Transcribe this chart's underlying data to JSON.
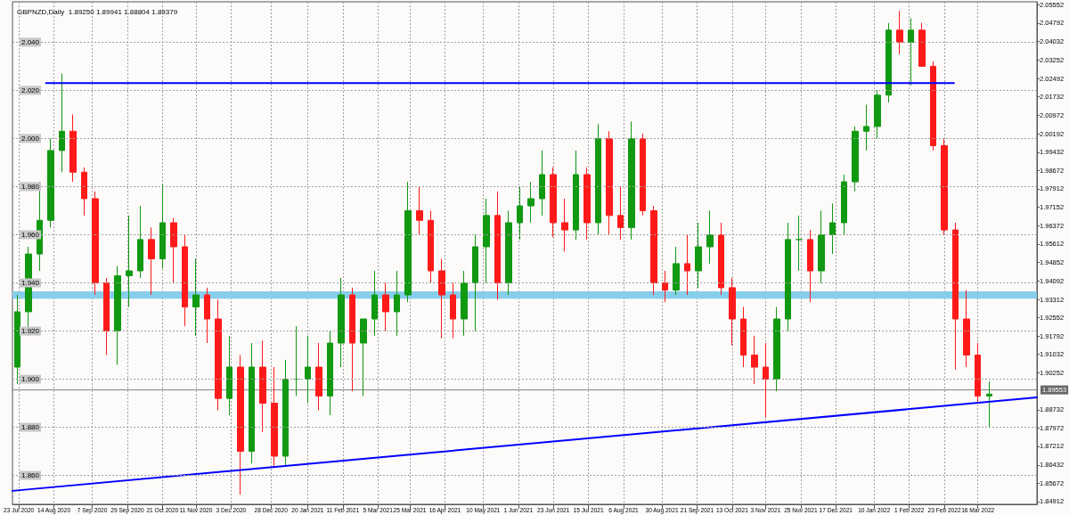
{
  "chart_data": {
    "type": "candlestick",
    "title": "GBPNZD,Daily  1.89250 1.89941 1.88804 1.89379",
    "x": [
      "2020-07-22",
      "2020-07-29",
      "2020-08-05",
      "2020-08-12",
      "2020-08-19",
      "2020-08-26",
      "2020-09-02",
      "2020-09-09",
      "2020-09-16",
      "2020-09-23",
      "2020-09-30",
      "2020-10-07",
      "2020-10-14",
      "2020-10-21",
      "2020-10-28",
      "2020-11-04",
      "2020-11-11",
      "2020-11-18",
      "2020-11-25",
      "2020-12-02",
      "2020-12-09",
      "2020-12-16",
      "2020-12-23",
      "2020-12-30",
      "2021-01-06",
      "2021-01-13",
      "2021-01-20",
      "2021-01-27",
      "2021-02-03",
      "2021-02-10",
      "2021-02-17",
      "2021-02-24",
      "2021-03-03",
      "2021-03-10",
      "2021-03-17",
      "2021-03-24",
      "2021-03-31",
      "2021-04-07",
      "2021-04-14",
      "2021-04-21",
      "2021-04-28",
      "2021-05-05",
      "2021-05-12",
      "2021-05-19",
      "2021-05-26",
      "2021-06-02",
      "2021-06-09",
      "2021-06-16",
      "2021-06-23",
      "2021-06-30",
      "2021-07-07",
      "2021-07-14",
      "2021-07-21",
      "2021-07-28",
      "2021-08-04",
      "2021-08-11",
      "2021-08-18",
      "2021-08-25",
      "2021-09-01",
      "2021-09-08",
      "2021-09-15",
      "2021-09-22",
      "2021-09-29",
      "2021-10-06",
      "2021-10-13",
      "2021-10-20",
      "2021-10-27",
      "2021-11-03",
      "2021-11-10",
      "2021-11-17",
      "2021-11-24",
      "2021-12-01",
      "2021-12-08",
      "2021-12-15",
      "2021-12-22",
      "2021-12-29",
      "2022-01-05",
      "2022-01-12",
      "2022-01-19",
      "2022-01-26",
      "2022-02-02",
      "2022-02-09",
      "2022-02-16",
      "2022-02-23",
      "2022-03-02",
      "2022-03-09",
      "2022-03-16",
      "2022-03-23"
    ],
    "ohlc": [
      [
        1.905,
        1.935,
        1.898,
        1.928
      ],
      [
        1.928,
        1.955,
        1.918,
        1.952
      ],
      [
        1.952,
        1.982,
        1.945,
        1.966
      ],
      [
        1.966,
        2.0,
        1.963,
        1.995
      ],
      [
        1.995,
        2.027,
        1.986,
        2.003
      ],
      [
        2.003,
        2.01,
        1.982,
        1.986
      ],
      [
        1.986,
        1.988,
        1.968,
        1.975
      ],
      [
        1.975,
        1.978,
        1.935,
        1.94
      ],
      [
        1.94,
        1.942,
        1.91,
        1.92
      ],
      [
        1.92,
        1.947,
        1.906,
        1.943
      ],
      [
        1.943,
        1.968,
        1.93,
        1.945
      ],
      [
        1.945,
        1.972,
        1.942,
        1.958
      ],
      [
        1.958,
        1.963,
        1.935,
        1.95
      ],
      [
        1.95,
        1.981,
        1.946,
        1.965
      ],
      [
        1.965,
        1.967,
        1.94,
        1.955
      ],
      [
        1.955,
        1.96,
        1.922,
        1.93
      ],
      [
        1.93,
        1.95,
        1.918,
        1.935
      ],
      [
        1.935,
        1.938,
        1.915,
        1.925
      ],
      [
        1.925,
        1.933,
        1.887,
        1.892
      ],
      [
        1.892,
        1.918,
        1.885,
        1.905
      ],
      [
        1.905,
        1.91,
        1.852,
        1.87
      ],
      [
        1.87,
        1.915,
        1.865,
        1.905
      ],
      [
        1.905,
        1.916,
        1.878,
        1.89
      ],
      [
        1.89,
        1.905,
        1.863,
        1.868
      ],
      [
        1.868,
        1.908,
        1.864,
        1.9
      ],
      [
        1.9,
        1.922,
        1.893,
        1.9
      ],
      [
        1.9,
        1.918,
        1.89,
        1.905
      ],
      [
        1.905,
        1.915,
        1.887,
        1.893
      ],
      [
        1.893,
        1.92,
        1.885,
        1.915
      ],
      [
        1.915,
        1.942,
        1.905,
        1.935
      ],
      [
        1.935,
        1.938,
        1.895,
        1.915
      ],
      [
        1.915,
        1.925,
        1.893,
        1.925
      ],
      [
        1.925,
        1.945,
        1.918,
        1.935
      ],
      [
        1.935,
        1.94,
        1.92,
        1.928
      ],
      [
        1.928,
        1.945,
        1.918,
        1.935
      ],
      [
        1.935,
        1.982,
        1.932,
        1.97
      ],
      [
        1.97,
        1.98,
        1.96,
        1.966
      ],
      [
        1.966,
        1.97,
        1.94,
        1.945
      ],
      [
        1.945,
        1.95,
        1.917,
        1.935
      ],
      [
        1.935,
        1.94,
        1.917,
        1.925
      ],
      [
        1.925,
        1.945,
        1.918,
        1.94
      ],
      [
        1.94,
        1.96,
        1.92,
        1.955
      ],
      [
        1.955,
        1.975,
        1.94,
        1.968
      ],
      [
        1.968,
        1.978,
        1.933,
        1.94
      ],
      [
        1.94,
        1.97,
        1.935,
        1.965
      ],
      [
        1.965,
        1.98,
        1.958,
        1.972
      ],
      [
        1.972,
        1.982,
        1.965,
        1.975
      ],
      [
        1.975,
        1.995,
        1.968,
        1.985
      ],
      [
        1.985,
        1.988,
        1.959,
        1.965
      ],
      [
        1.965,
        1.975,
        1.953,
        1.962
      ],
      [
        1.962,
        1.995,
        1.958,
        1.985
      ],
      [
        1.985,
        1.988,
        1.958,
        1.965
      ],
      [
        1.965,
        2.006,
        1.96,
        2.0
      ],
      [
        2.0,
        2.003,
        1.96,
        1.968
      ],
      [
        1.968,
        1.98,
        1.958,
        1.963
      ],
      [
        1.963,
        2.007,
        1.958,
        2.0
      ],
      [
        2.0,
        2.002,
        1.968,
        1.97
      ],
      [
        1.97,
        1.972,
        1.935,
        1.94
      ],
      [
        1.94,
        1.945,
        1.932,
        1.937
      ],
      [
        1.937,
        1.955,
        1.935,
        1.948
      ],
      [
        1.948,
        1.96,
        1.935,
        1.945
      ],
      [
        1.945,
        1.965,
        1.938,
        1.955
      ],
      [
        1.955,
        1.97,
        1.948,
        1.96
      ],
      [
        1.96,
        1.965,
        1.935,
        1.938
      ],
      [
        1.938,
        1.942,
        1.914,
        1.925
      ],
      [
        1.925,
        1.93,
        1.905,
        1.91
      ],
      [
        1.91,
        1.918,
        1.898,
        1.905
      ],
      [
        1.905,
        1.915,
        1.884,
        1.9
      ],
      [
        1.9,
        1.93,
        1.895,
        1.925
      ],
      [
        1.925,
        1.965,
        1.92,
        1.958
      ],
      [
        1.958,
        1.968,
        1.945,
        1.958
      ],
      [
        1.958,
        1.962,
        1.932,
        1.945
      ],
      [
        1.945,
        1.97,
        1.94,
        1.96
      ],
      [
        1.96,
        1.973,
        1.952,
        1.965
      ],
      [
        1.965,
        1.985,
        1.96,
        1.982
      ],
      [
        1.982,
        2.005,
        1.978,
        2.003
      ],
      [
        2.003,
        2.014,
        1.995,
        2.005
      ],
      [
        2.005,
        2.02,
        2.0,
        2.018
      ],
      [
        2.018,
        2.048,
        2.015,
        2.045
      ],
      [
        2.045,
        2.053,
        2.035,
        2.04
      ],
      [
        2.04,
        2.05,
        2.022,
        2.045
      ],
      [
        2.045,
        2.048,
        2.03,
        2.03
      ],
      [
        2.03,
        2.032,
        1.995,
        1.997
      ],
      [
        1.997,
        2.0,
        1.96,
        1.962
      ],
      [
        1.962,
        1.965,
        1.904,
        1.925
      ],
      [
        1.925,
        1.937,
        1.905,
        1.91
      ],
      [
        1.91,
        1.915,
        1.89,
        1.893
      ],
      [
        1.893,
        1.899,
        1.88,
        1.8938
      ]
    ],
    "series": [
      {
        "type": "line",
        "color": "#0000ff",
        "x": [
          "2020-08-09",
          "2022-03-01"
        ],
        "values": [
          2.023,
          2.023
        ]
      },
      {
        "type": "line",
        "color": "#0000ff",
        "x": [
          "2020-07-19",
          "2022-04-22"
        ],
        "values": [
          1.8536,
          1.8924
        ]
      }
    ],
    "ref_lines": [
      {
        "axis": "y2",
        "value": 1.89553,
        "label": "1.89553",
        "color": "#808080"
      }
    ],
    "bands": [
      {
        "axis": "y",
        "from": 1.9334,
        "to": 1.9365,
        "color": "#87ceeb"
      }
    ],
    "xlim": [
      "2020-07-19",
      "2022-04-22"
    ],
    "xticks": [
      {
        "value": "2020-07-23",
        "label": "23 Jul 2020"
      },
      {
        "value": "2020-08-14",
        "label": "14 Aug 2020"
      },
      {
        "value": "2020-09-07",
        "label": "7 Sep 2020"
      },
      {
        "value": "2020-09-29",
        "label": "29 Sep 2020"
      },
      {
        "value": "2020-10-21",
        "label": "21 Oct 2020"
      },
      {
        "value": "2020-11-11",
        "label": "11 Nov 2020"
      },
      {
        "value": "2020-12-03",
        "label": "3 Dec 2020"
      },
      {
        "value": "2020-12-28",
        "label": "28 Dec 2020"
      },
      {
        "value": "2021-01-20",
        "label": "20 Jan 2021"
      },
      {
        "value": "2021-02-11",
        "label": "11 Feb 2021"
      },
      {
        "value": "2021-03-05",
        "label": "5 Mar 2021"
      },
      {
        "value": "2021-03-25",
        "label": "25 Mar 2021"
      },
      {
        "value": "2021-04-16",
        "label": "16 Apr 2021"
      },
      {
        "value": "2021-05-10",
        "label": "10 May 2021"
      },
      {
        "value": "2021-06-01",
        "label": "1 Jun 2021"
      },
      {
        "value": "2021-06-23",
        "label": "23 Jun 2021"
      },
      {
        "value": "2021-07-15",
        "label": "15 Jul 2021"
      },
      {
        "value": "2021-08-06",
        "label": "6 Aug 2021"
      },
      {
        "value": "2021-08-30",
        "label": "30 Aug 2021"
      },
      {
        "value": "2021-09-21",
        "label": "21 Sep 2021"
      },
      {
        "value": "2021-10-13",
        "label": "13 Oct 2021"
      },
      {
        "value": "2021-11-03",
        "label": "3 Nov 2021"
      },
      {
        "value": "2021-11-25",
        "label": "25 Nov 2021"
      },
      {
        "value": "2021-12-17",
        "label": "17 Dec 2021"
      },
      {
        "value": "2022-01-10",
        "label": "10 Jan 2022"
      },
      {
        "value": "2022-02-01",
        "label": "1 Feb 2022"
      },
      {
        "value": "2022-02-23",
        "label": "23 Feb 2022"
      },
      {
        "value": "2022-03-16",
        "label": "16 Mar 2022"
      }
    ],
    "ylim": [
      1.848,
      2.0568
    ],
    "yticks": [
      {
        "value": 1.86,
        "label": "1.860"
      },
      {
        "value": 1.88,
        "label": "1.880"
      },
      {
        "value": 1.9,
        "label": "1.900"
      },
      {
        "value": 1.92,
        "label": "1.920"
      },
      {
        "value": 1.94,
        "label": "1.940"
      },
      {
        "value": 1.96,
        "label": "1.960"
      },
      {
        "value": 1.98,
        "label": "1.980"
      },
      {
        "value": 2.0,
        "label": "2.000"
      },
      {
        "value": 2.02,
        "label": "2.020"
      },
      {
        "value": 2.04,
        "label": "2.040"
      }
    ],
    "y2lim": [
      1.848,
      2.0568
    ],
    "y2ticks": [
      1.84912,
      1.85672,
      1.86432,
      1.87212,
      1.87972,
      1.88732,
      1.90252,
      1.91032,
      1.91792,
      1.92552,
      1.93312,
      1.94092,
      1.94852,
      1.95612,
      1.96372,
      1.97152,
      1.97912,
      1.98672,
      1.99432,
      2.00192,
      2.00972,
      2.01732,
      2.02492,
      2.03252,
      2.04032,
      2.04792,
      2.05552
    ],
    "grid": true
  }
}
